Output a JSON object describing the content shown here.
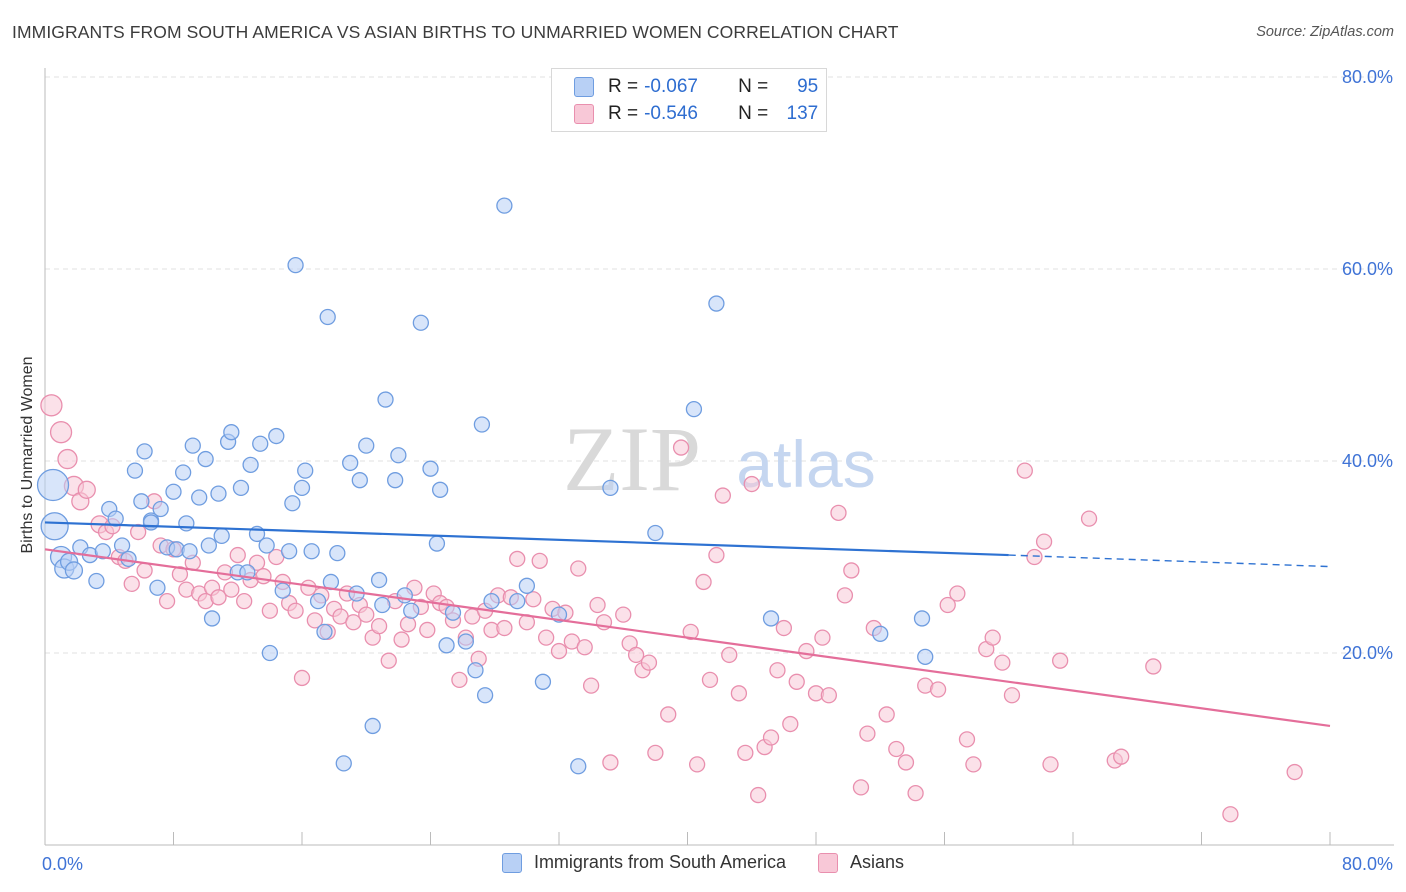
{
  "title": "IMMIGRANTS FROM SOUTH AMERICA VS ASIAN BIRTHS TO UNMARRIED WOMEN CORRELATION CHART",
  "source": "Source: ZipAtlas.com",
  "watermark": {
    "zip": "ZIP",
    "atlas": "atlas"
  },
  "colors": {
    "blue_fill": "#b8d0f5",
    "blue_stroke": "#6f9de0",
    "blue_line": "#2e72d2",
    "pink_fill": "#f8c8d7",
    "pink_stroke": "#e98fae",
    "pink_line": "#e46e9a",
    "axis_text": "#3f73d6",
    "grid": "#e2e2e2"
  },
  "legend": {
    "rows": [
      {
        "r_label": "R =",
        "r_value": "-0.067",
        "n_label": "N =",
        "n_value": "95",
        "color": "blue"
      },
      {
        "r_label": "R =",
        "r_value": "-0.546",
        "n_label": "N =",
        "n_value": "137",
        "color": "pink"
      }
    ]
  },
  "bottom_legend": [
    {
      "label": "Immigrants from South America",
      "color": "blue"
    },
    {
      "label": "Asians",
      "color": "pink"
    }
  ],
  "chart_data": {
    "type": "scatter",
    "ylabel": "Births to Unmarried Women",
    "xlabel": "",
    "xlim": [
      0,
      80
    ],
    "ylim": [
      0,
      80
    ],
    "x_tick_labels": [
      "0.0%",
      "80.0%"
    ],
    "y_tick_labels": [
      "20.0%",
      "40.0%",
      "60.0%",
      "80.0%"
    ],
    "y_ticks": [
      20,
      40,
      60,
      80
    ],
    "grid": "horizontal dashed",
    "series": [
      {
        "name": "Immigrants from South America",
        "color": "blue",
        "trend": {
          "x0": 0,
          "y0": 33.6,
          "x1": 60,
          "y1": 30.2,
          "dashed_to_x": 80,
          "dashed_to_y": 29.0
        },
        "points": [
          [
            0.5,
            37.5,
            14
          ],
          [
            0.6,
            33.2,
            12
          ],
          [
            1.0,
            30.0,
            9
          ],
          [
            1.2,
            28.8,
            8
          ],
          [
            1.5,
            29.5,
            7
          ],
          [
            1.8,
            28.6,
            7
          ],
          [
            2.2,
            31.0,
            6
          ],
          [
            2.8,
            30.2,
            6
          ],
          [
            3.2,
            27.5,
            6
          ],
          [
            3.6,
            30.6,
            6
          ],
          [
            4.0,
            35.0,
            6
          ],
          [
            4.4,
            34.0,
            6
          ],
          [
            4.8,
            31.2,
            6
          ],
          [
            5.2,
            29.8,
            6
          ],
          [
            5.6,
            39.0,
            6
          ],
          [
            6.0,
            35.8,
            6
          ],
          [
            6.2,
            41.0,
            6
          ],
          [
            6.6,
            33.8,
            6
          ],
          [
            7.0,
            26.8,
            6
          ],
          [
            7.2,
            35.0,
            6
          ],
          [
            7.6,
            31.0,
            6
          ],
          [
            8.0,
            36.8,
            6
          ],
          [
            8.2,
            30.8,
            6
          ],
          [
            8.6,
            38.8,
            6
          ],
          [
            8.8,
            33.5,
            6
          ],
          [
            9.2,
            41.6,
            6
          ],
          [
            9.6,
            36.2,
            6
          ],
          [
            10.0,
            40.2,
            6
          ],
          [
            10.2,
            31.2,
            6
          ],
          [
            10.4,
            23.6,
            6
          ],
          [
            10.8,
            36.6,
            6
          ],
          [
            11.0,
            32.2,
            6
          ],
          [
            11.4,
            42.0,
            6
          ],
          [
            11.6,
            43.0,
            6
          ],
          [
            12.0,
            28.4,
            6
          ],
          [
            12.2,
            37.2,
            6
          ],
          [
            12.6,
            28.4,
            6
          ],
          [
            12.8,
            39.6,
            6
          ],
          [
            13.2,
            32.4,
            6
          ],
          [
            13.4,
            41.8,
            6
          ],
          [
            13.8,
            31.2,
            6
          ],
          [
            14.0,
            20.0,
            6
          ],
          [
            14.4,
            42.6,
            6
          ],
          [
            14.8,
            26.5,
            6
          ],
          [
            15.2,
            30.6,
            6
          ],
          [
            15.4,
            35.6,
            6
          ],
          [
            15.6,
            60.4,
            6
          ],
          [
            16.0,
            37.2,
            6
          ],
          [
            16.2,
            39.0,
            6
          ],
          [
            16.6,
            30.6,
            6
          ],
          [
            17.0,
            25.4,
            6
          ],
          [
            17.4,
            22.2,
            6
          ],
          [
            17.6,
            55.0,
            6
          ],
          [
            17.8,
            27.4,
            6
          ],
          [
            18.2,
            30.4,
            6
          ],
          [
            18.6,
            8.5,
            6
          ],
          [
            19.0,
            39.8,
            6
          ],
          [
            19.4,
            26.2,
            6
          ],
          [
            19.6,
            38.0,
            6
          ],
          [
            20.0,
            41.6,
            6
          ],
          [
            20.4,
            12.4,
            6
          ],
          [
            20.8,
            27.6,
            6
          ],
          [
            21.0,
            25.0,
            6
          ],
          [
            21.2,
            46.4,
            6
          ],
          [
            21.8,
            38.0,
            6
          ],
          [
            22.0,
            40.6,
            6
          ],
          [
            22.4,
            26.0,
            6
          ],
          [
            22.8,
            24.4,
            6
          ],
          [
            23.4,
            54.4,
            6
          ],
          [
            24.0,
            39.2,
            6
          ],
          [
            24.4,
            31.4,
            6
          ],
          [
            24.6,
            37.0,
            6
          ],
          [
            25.0,
            20.8,
            6
          ],
          [
            25.4,
            24.2,
            6
          ],
          [
            26.2,
            21.2,
            6
          ],
          [
            26.8,
            18.2,
            6
          ],
          [
            27.2,
            43.8,
            6
          ],
          [
            27.4,
            15.6,
            6
          ],
          [
            27.8,
            25.4,
            6
          ],
          [
            28.6,
            66.6,
            6
          ],
          [
            29.4,
            25.4,
            6
          ],
          [
            30.0,
            27.0,
            6
          ],
          [
            31.0,
            17.0,
            6
          ],
          [
            32.0,
            24.0,
            6
          ],
          [
            33.2,
            8.2,
            6
          ],
          [
            35.2,
            37.2,
            6
          ],
          [
            38.0,
            32.5,
            6
          ],
          [
            40.4,
            45.4,
            6
          ],
          [
            41.8,
            56.4,
            6
          ],
          [
            45.2,
            23.6,
            6
          ],
          [
            54.6,
            23.6,
            6
          ],
          [
            54.8,
            19.6,
            6
          ],
          [
            52.0,
            22.0,
            6
          ],
          [
            6.6,
            33.6,
            6
          ],
          [
            9.0,
            30.6,
            6
          ]
        ]
      },
      {
        "name": "Asians",
        "color": "pink",
        "trend": {
          "x0": 0,
          "y0": 30.8,
          "x1": 80,
          "y1": 12.4
        },
        "points": [
          [
            0.4,
            45.8,
            9
          ],
          [
            1.0,
            43.0,
            9
          ],
          [
            1.4,
            40.2,
            8
          ],
          [
            1.8,
            37.4,
            8
          ],
          [
            2.2,
            35.8,
            7
          ],
          [
            2.6,
            37.0,
            7
          ],
          [
            3.4,
            33.4,
            7
          ],
          [
            3.8,
            32.6,
            6
          ],
          [
            4.2,
            33.2,
            6
          ],
          [
            4.6,
            30.0,
            6
          ],
          [
            5.0,
            29.6,
            6
          ],
          [
            5.4,
            27.2,
            6
          ],
          [
            5.8,
            32.6,
            6
          ],
          [
            6.2,
            28.6,
            6
          ],
          [
            6.8,
            35.8,
            6
          ],
          [
            7.2,
            31.2,
            6
          ],
          [
            7.6,
            25.4,
            6
          ],
          [
            8.0,
            30.8,
            6
          ],
          [
            8.4,
            28.2,
            6
          ],
          [
            8.8,
            26.6,
            6
          ],
          [
            9.2,
            29.4,
            6
          ],
          [
            9.6,
            26.2,
            6
          ],
          [
            10.0,
            25.4,
            6
          ],
          [
            10.4,
            26.8,
            6
          ],
          [
            10.8,
            25.8,
            6
          ],
          [
            11.2,
            28.4,
            6
          ],
          [
            11.6,
            26.6,
            6
          ],
          [
            12.0,
            30.2,
            6
          ],
          [
            12.4,
            25.4,
            6
          ],
          [
            12.8,
            27.6,
            6
          ],
          [
            13.2,
            29.4,
            6
          ],
          [
            13.6,
            28.0,
            6
          ],
          [
            14.0,
            24.4,
            6
          ],
          [
            14.4,
            30.0,
            6
          ],
          [
            14.8,
            27.4,
            6
          ],
          [
            15.2,
            25.2,
            6
          ],
          [
            15.6,
            24.4,
            6
          ],
          [
            16.0,
            17.4,
            6
          ],
          [
            16.4,
            26.8,
            6
          ],
          [
            16.8,
            23.4,
            6
          ],
          [
            17.2,
            26.0,
            6
          ],
          [
            17.6,
            22.2,
            6
          ],
          [
            18.0,
            24.6,
            6
          ],
          [
            18.4,
            23.8,
            6
          ],
          [
            18.8,
            26.2,
            6
          ],
          [
            19.2,
            23.2,
            6
          ],
          [
            19.6,
            25.0,
            6
          ],
          [
            20.0,
            24.0,
            6
          ],
          [
            20.4,
            21.6,
            6
          ],
          [
            20.8,
            22.8,
            6
          ],
          [
            21.4,
            19.2,
            6
          ],
          [
            21.8,
            25.4,
            6
          ],
          [
            22.2,
            21.4,
            6
          ],
          [
            22.6,
            23.0,
            6
          ],
          [
            23.0,
            26.8,
            6
          ],
          [
            23.4,
            24.8,
            6
          ],
          [
            23.8,
            22.4,
            6
          ],
          [
            24.2,
            26.2,
            6
          ],
          [
            24.6,
            25.2,
            6
          ],
          [
            25.0,
            24.8,
            6
          ],
          [
            25.4,
            23.4,
            6
          ],
          [
            25.8,
            17.2,
            6
          ],
          [
            26.2,
            21.6,
            6
          ],
          [
            26.6,
            23.8,
            6
          ],
          [
            27.0,
            19.4,
            6
          ],
          [
            27.4,
            24.4,
            6
          ],
          [
            27.8,
            22.4,
            6
          ],
          [
            28.2,
            26.0,
            6
          ],
          [
            28.6,
            22.6,
            6
          ],
          [
            29.0,
            25.8,
            6
          ],
          [
            29.4,
            29.8,
            6
          ],
          [
            30.0,
            23.2,
            6
          ],
          [
            30.4,
            25.6,
            6
          ],
          [
            30.8,
            29.6,
            6
          ],
          [
            31.2,
            21.6,
            6
          ],
          [
            31.6,
            24.6,
            6
          ],
          [
            32.0,
            20.2,
            6
          ],
          [
            32.4,
            24.2,
            6
          ],
          [
            32.8,
            21.2,
            6
          ],
          [
            33.2,
            28.8,
            6
          ],
          [
            33.6,
            20.6,
            6
          ],
          [
            34.0,
            16.6,
            6
          ],
          [
            34.4,
            25.0,
            6
          ],
          [
            34.8,
            23.2,
            6
          ],
          [
            35.2,
            8.6,
            6
          ],
          [
            36.0,
            24.0,
            6
          ],
          [
            36.4,
            21.0,
            6
          ],
          [
            36.8,
            19.8,
            6
          ],
          [
            37.2,
            18.2,
            6
          ],
          [
            37.6,
            19.0,
            6
          ],
          [
            38.0,
            9.6,
            6
          ],
          [
            38.8,
            13.6,
            6
          ],
          [
            39.6,
            41.4,
            6
          ],
          [
            40.2,
            22.2,
            6
          ],
          [
            40.6,
            8.4,
            6
          ],
          [
            41.0,
            27.4,
            6
          ],
          [
            41.4,
            17.2,
            6
          ],
          [
            41.8,
            30.2,
            6
          ],
          [
            42.2,
            36.4,
            6
          ],
          [
            42.6,
            19.8,
            6
          ],
          [
            43.2,
            15.8,
            6
          ],
          [
            43.6,
            9.6,
            6
          ],
          [
            44.0,
            37.6,
            6
          ],
          [
            44.4,
            5.2,
            6
          ],
          [
            44.8,
            10.2,
            6
          ],
          [
            45.2,
            11.2,
            6
          ],
          [
            45.6,
            18.2,
            6
          ],
          [
            46.0,
            22.6,
            6
          ],
          [
            46.4,
            12.6,
            6
          ],
          [
            46.8,
            17.0,
            6
          ],
          [
            47.4,
            20.2,
            6
          ],
          [
            48.0,
            15.8,
            6
          ],
          [
            48.4,
            21.6,
            6
          ],
          [
            48.8,
            15.6,
            6
          ],
          [
            49.4,
            34.6,
            6
          ],
          [
            49.8,
            26.0,
            6
          ],
          [
            50.2,
            28.6,
            6
          ],
          [
            50.8,
            6.0,
            6
          ],
          [
            51.2,
            11.6,
            6
          ],
          [
            51.6,
            22.6,
            6
          ],
          [
            52.4,
            13.6,
            6
          ],
          [
            53.0,
            10.0,
            6
          ],
          [
            53.6,
            8.6,
            6
          ],
          [
            54.2,
            5.4,
            6
          ],
          [
            54.8,
            16.6,
            6
          ],
          [
            55.6,
            16.2,
            6
          ],
          [
            56.2,
            25.0,
            6
          ],
          [
            56.8,
            26.2,
            6
          ],
          [
            57.4,
            11.0,
            6
          ],
          [
            57.8,
            8.4,
            6
          ],
          [
            58.6,
            20.4,
            6
          ],
          [
            59.0,
            21.6,
            6
          ],
          [
            59.6,
            19.0,
            6
          ],
          [
            60.2,
            15.6,
            6
          ],
          [
            61.0,
            39.0,
            6
          ],
          [
            61.6,
            30.0,
            6
          ],
          [
            62.2,
            31.6,
            6
          ],
          [
            62.6,
            8.4,
            6
          ],
          [
            63.2,
            19.2,
            6
          ],
          [
            65.0,
            34.0,
            6
          ],
          [
            66.6,
            8.8,
            6
          ],
          [
            67.0,
            9.2,
            6
          ],
          [
            69.0,
            18.6,
            6
          ],
          [
            73.8,
            3.2,
            6
          ],
          [
            77.8,
            7.6,
            6
          ]
        ]
      }
    ]
  }
}
